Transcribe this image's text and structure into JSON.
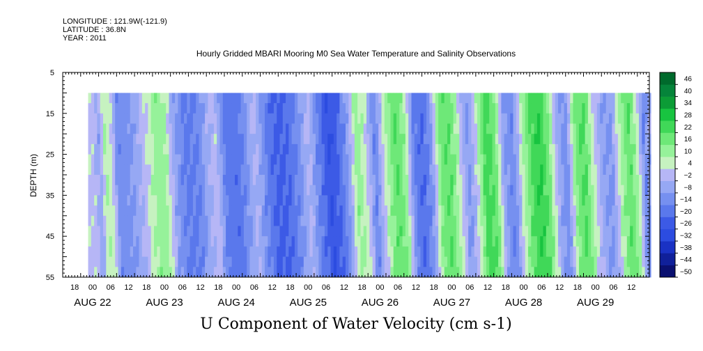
{
  "header": {
    "longitude": "LONGITUDE : 121.9W(-121.9)",
    "latitude": "LATITUDE : 36.8N",
    "year": "YEAR : 2011"
  },
  "title": "Hourly Gridded MBARI Mooring M0 Sea Water Temperature and Salinity Observations",
  "chart_data": {
    "type": "heatmap",
    "title": "Hourly Gridded MBARI Mooring M0 Sea Water Temperature and Salinity Observations",
    "colorbar_title": "U Component of Water Velocity (cm s-1)",
    "ylabel": "DEPTH (m)",
    "y_reversed": true,
    "ylim": [
      5,
      55
    ],
    "data_depth_range": [
      10,
      55
    ],
    "y_ticks": [
      "5",
      "15",
      "25",
      "35",
      "45",
      "55"
    ],
    "x_hour_ticks": [
      "18",
      "00",
      "06",
      "12",
      "18",
      "00",
      "06",
      "12",
      "18",
      "00",
      "06",
      "12",
      "18",
      "00",
      "06",
      "12",
      "18",
      "00",
      "06",
      "12",
      "18",
      "00",
      "06",
      "12",
      "18",
      "00",
      "06",
      "12",
      "18",
      "00",
      "06",
      "12"
    ],
    "x_day_labels": [
      "AUG 22",
      "AUG 23",
      "AUG 24",
      "AUG 25",
      "AUG 26",
      "AUG 27",
      "AUG 28",
      "AUG 29"
    ],
    "x_range_hours": [
      0,
      196
    ],
    "colorbar_ticks": [
      "46",
      "40",
      "34",
      "28",
      "22",
      "16",
      "10",
      "4",
      "−2",
      "−8",
      "−14",
      "−20",
      "−26",
      "−32",
      "−38",
      "−44",
      "−50"
    ],
    "colorbar_range": [
      -50,
      52
    ],
    "colors": {
      "green_dark": "#006a2c",
      "green_mid": "#18c440",
      "green_light": "#96f29a",
      "blue_light": "#b6b6f6",
      "blue_mid": "#5a78ec",
      "blue_dark": "#1e3cd6",
      "navy": "#0a1070"
    },
    "bands": [
      {
        "hour": 9,
        "value": 2
      },
      {
        "hour": 11,
        "value": -6
      },
      {
        "hour": 13,
        "value": 10
      },
      {
        "hour": 15,
        "value": 6
      },
      {
        "hour": 17,
        "value": -12
      },
      {
        "hour": 21,
        "value": -10
      },
      {
        "hour": 24,
        "value": -4
      },
      {
        "hour": 27,
        "value": 4
      },
      {
        "hour": 30,
        "value": 14
      },
      {
        "hour": 33,
        "value": 12
      },
      {
        "hour": 36,
        "value": -6
      },
      {
        "hour": 40,
        "value": -16
      },
      {
        "hour": 44,
        "value": -14
      },
      {
        "hour": 47,
        "value": -4
      },
      {
        "hour": 50,
        "value": 2
      },
      {
        "hour": 53,
        "value": -16
      },
      {
        "hour": 57,
        "value": -18
      },
      {
        "hour": 60,
        "value": -10
      },
      {
        "hour": 63,
        "value": 0
      },
      {
        "hour": 66,
        "value": -12
      },
      {
        "hour": 70,
        "value": -22
      },
      {
        "hour": 74,
        "value": -20
      },
      {
        "hour": 78,
        "value": -10
      },
      {
        "hour": 81,
        "value": 0
      },
      {
        "hour": 84,
        "value": -14
      },
      {
        "hour": 88,
        "value": -26
      },
      {
        "hour": 91,
        "value": -20
      },
      {
        "hour": 94,
        "value": -8
      },
      {
        "hour": 97,
        "value": 14
      },
      {
        "hour": 100,
        "value": 6
      },
      {
        "hour": 103,
        "value": -14
      },
      {
        "hour": 107,
        "value": 10
      },
      {
        "hour": 110,
        "value": 22
      },
      {
        "hour": 113,
        "value": 14
      },
      {
        "hour": 116,
        "value": -14
      },
      {
        "hour": 119,
        "value": -20
      },
      {
        "hour": 122,
        "value": -8
      },
      {
        "hour": 125,
        "value": 18
      },
      {
        "hour": 128,
        "value": 22
      },
      {
        "hour": 131,
        "value": 8
      },
      {
        "hour": 134,
        "value": -10
      },
      {
        "hour": 137,
        "value": 4
      },
      {
        "hour": 140,
        "value": 26
      },
      {
        "hour": 143,
        "value": 20
      },
      {
        "hour": 146,
        "value": -6
      },
      {
        "hour": 149,
        "value": -14
      },
      {
        "hour": 152,
        "value": 6
      },
      {
        "hour": 155,
        "value": 22
      },
      {
        "hour": 158,
        "value": 28
      },
      {
        "hour": 161,
        "value": 18
      },
      {
        "hour": 164,
        "value": -4
      },
      {
        "hour": 167,
        "value": -12
      },
      {
        "hour": 170,
        "value": 16
      },
      {
        "hour": 173,
        "value": 24
      },
      {
        "hour": 176,
        "value": 6
      },
      {
        "hour": 179,
        "value": -6
      },
      {
        "hour": 182,
        "value": -10
      },
      {
        "hour": 185,
        "value": 10
      },
      {
        "hour": 188,
        "value": 22
      },
      {
        "hour": 191,
        "value": 8
      },
      {
        "hour": 193,
        "value": -14
      },
      {
        "hour": 195,
        "value": -4
      }
    ]
  }
}
